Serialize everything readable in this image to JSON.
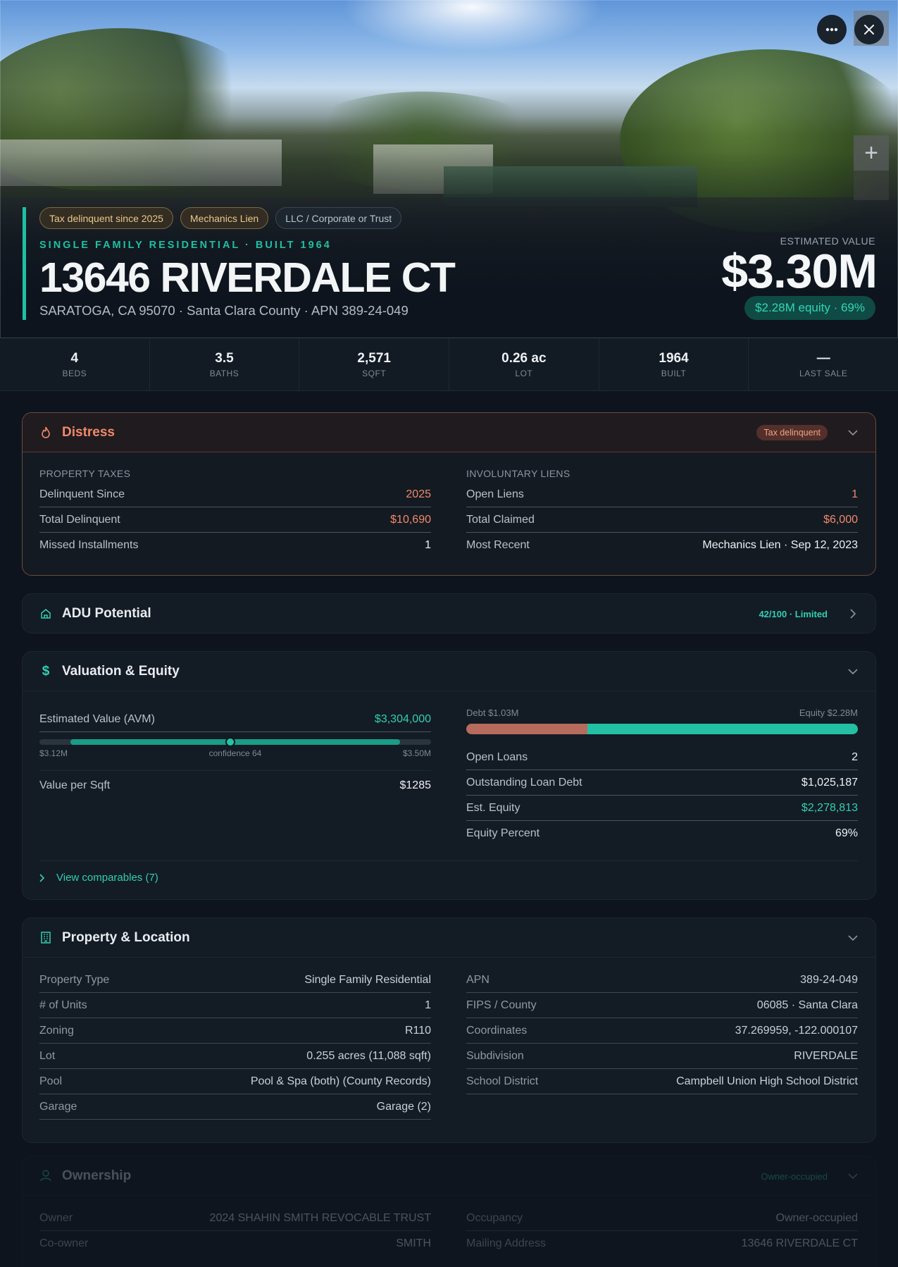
{
  "hero": {
    "badges": [
      "Tax delinquent since 2025",
      "Mechanics Lien",
      "LLC / Corporate or Trust"
    ],
    "subtitle": "SINGLE FAMILY RESIDENTIAL · BUILT 1964",
    "address": "13646 RIVERDALE CT",
    "location": "SARATOGA, CA 95070 · Santa Clara County · APN 389-24-049",
    "estimated_label": "ESTIMATED VALUE",
    "estimated_value": "$3.30M",
    "equity_pill": "$2.28M equity · 69%",
    "zoom_label": "+"
  },
  "stats": [
    {
      "value": "4",
      "label": "BEDS"
    },
    {
      "value": "3.5",
      "label": "BATHS"
    },
    {
      "value": "2,571",
      "label": "SQFT"
    },
    {
      "value": "0.26 ac",
      "label": "LOT"
    },
    {
      "value": "1964",
      "label": "BUILT"
    },
    {
      "value": "—",
      "label": "LAST SALE"
    }
  ],
  "distress": {
    "title": "Distress",
    "tag": "Tax delinquent",
    "taxes": {
      "label": "PROPERTY TAXES",
      "rows": [
        {
          "k": "Delinquent Since",
          "v": "2025"
        },
        {
          "k": "Total Delinquent",
          "v": "$10,690"
        },
        {
          "k": "Missed Installments",
          "v": "1"
        }
      ]
    },
    "liens": {
      "label": "INVOLUNTARY LIENS",
      "rows": [
        {
          "k": "Open Liens",
          "v": "1"
        },
        {
          "k": "Total Claimed",
          "v": "$6,000"
        },
        {
          "k": "Most Recent",
          "v": "Mechanics Lien · Sep 12, 2023"
        }
      ]
    }
  },
  "adu": {
    "title": "ADU Potential",
    "score": "42/100 · Limited"
  },
  "valuation": {
    "title": "Valuation & Equity",
    "avm_label": "Estimated Value (AVM)",
    "avm_value": "$3,304,000",
    "range_low": "$3.12M",
    "confidence": "confidence 64",
    "range_high": "$3.50M",
    "range_low_num": 3.12,
    "range_high_num": 3.5,
    "avm_num": 3.304,
    "vps_label": "Value per Sqft",
    "vps_value": "$1285",
    "debt_label": "Debt $1.03M",
    "equity_label": "Equity $2.28M",
    "debt_fraction": 0.31,
    "rows": [
      {
        "k": "Open Loans",
        "v": "2"
      },
      {
        "k": "Outstanding Loan Debt",
        "v": "$1,025,187"
      },
      {
        "k": "Est. Equity",
        "v": "$2,278,813"
      },
      {
        "k": "Equity Percent",
        "v": "69%"
      }
    ],
    "comps": "View comparables (7)"
  },
  "property": {
    "title": "Property & Location",
    "left": [
      {
        "k": "Property Type",
        "v": "Single Family Residential"
      },
      {
        "k": "# of Units",
        "v": "1"
      },
      {
        "k": "Zoning",
        "v": "R110"
      },
      {
        "k": "Lot",
        "v": "0.255 acres (11,088 sqft)"
      },
      {
        "k": "Pool",
        "v": "Pool & Spa (both) (County Records)"
      },
      {
        "k": "Garage",
        "v": "Garage (2)"
      }
    ],
    "right": [
      {
        "k": "APN",
        "v": "389-24-049"
      },
      {
        "k": "FIPS / County",
        "v": "06085 · Santa Clara"
      },
      {
        "k": "Coordinates",
        "v": "37.269959, -122.000107"
      },
      {
        "k": "Subdivision",
        "v": "RIVERDALE"
      },
      {
        "k": "School District",
        "v": "Campbell Union High School District"
      }
    ]
  },
  "ownership": {
    "title": "Ownership",
    "tag": "Owner-occupied",
    "left": [
      {
        "k": "Owner",
        "v": "2024 SHAHIN SMITH REVOCABLE TRUST"
      },
      {
        "k": "Co-owner",
        "v": "SMITH"
      }
    ],
    "right": [
      {
        "k": "Occupancy",
        "v": "Owner-occupied"
      },
      {
        "k": "Mailing Address",
        "v": "13646 RIVERDALE CT"
      }
    ]
  },
  "colors": {
    "accent": "#1fbfa4",
    "distress": "#ef8a6a",
    "debt": "#b66b5c",
    "equity": "#22c1a3"
  }
}
